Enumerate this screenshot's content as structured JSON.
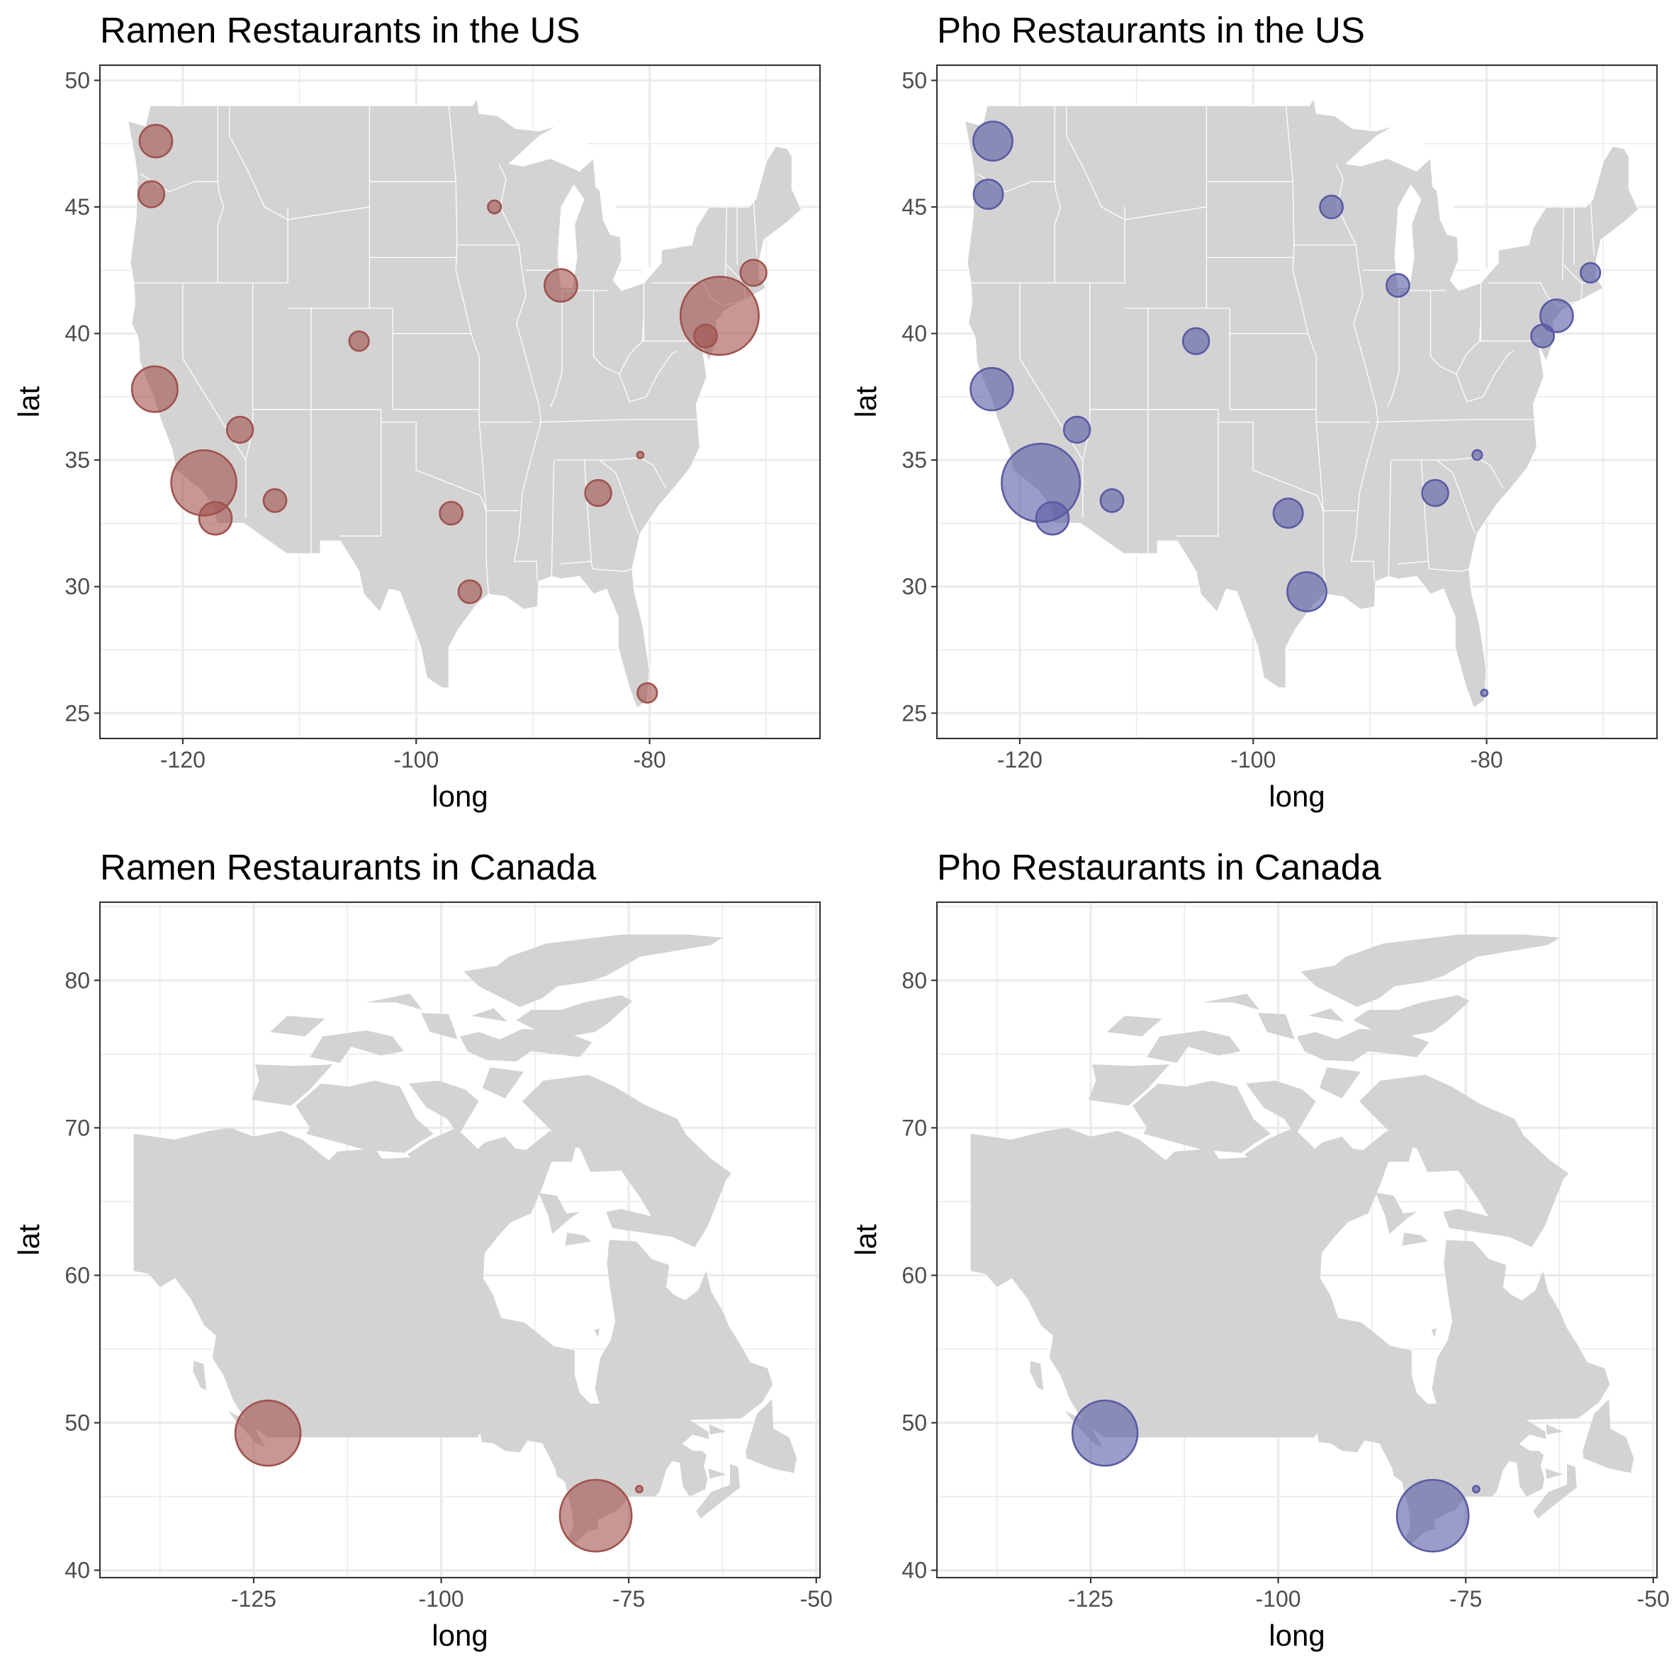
{
  "chart_data": [
    {
      "type": "scatter",
      "panel": "top-left",
      "title": "Ramen Restaurants in the US",
      "xlabel": "long",
      "ylabel": "lat",
      "xlim": [
        -127.1,
        -65.4
      ],
      "ylim": [
        24,
        50.6
      ],
      "x_ticks": [
        -120,
        -100,
        -80
      ],
      "y_ticks": [
        25,
        30,
        35,
        40,
        45,
        50
      ],
      "basemap": "contiguous United States (state outlines)",
      "grid": true,
      "point_color": "#a0524d",
      "points": [
        {
          "long": -122.3,
          "lat": 47.6,
          "size": 5
        },
        {
          "long": -122.7,
          "lat": 45.5,
          "size": 4
        },
        {
          "long": -122.4,
          "lat": 37.8,
          "size": 7
        },
        {
          "long": -118.2,
          "lat": 34.1,
          "size": 10
        },
        {
          "long": -117.2,
          "lat": 32.7,
          "size": 5
        },
        {
          "long": -115.1,
          "lat": 36.2,
          "size": 4
        },
        {
          "long": -112.1,
          "lat": 33.4,
          "size": 3.5
        },
        {
          "long": -104.9,
          "lat": 39.7,
          "size": 3
        },
        {
          "long": -97.0,
          "lat": 32.9,
          "size": 3.5
        },
        {
          "long": -95.4,
          "lat": 29.8,
          "size": 3.5
        },
        {
          "long": -93.3,
          "lat": 45.0,
          "size": 2
        },
        {
          "long": -87.6,
          "lat": 41.9,
          "size": 5
        },
        {
          "long": -84.4,
          "lat": 33.7,
          "size": 4
        },
        {
          "long": -80.8,
          "lat": 35.2,
          "size": 1
        },
        {
          "long": -80.2,
          "lat": 25.8,
          "size": 3
        },
        {
          "long": -75.2,
          "lat": 39.9,
          "size": 3.5
        },
        {
          "long": -74.0,
          "lat": 40.7,
          "size": 12
        },
        {
          "long": -71.1,
          "lat": 42.4,
          "size": 4
        }
      ]
    },
    {
      "type": "scatter",
      "panel": "top-right",
      "title": "Pho Restaurants in the US",
      "xlabel": "long",
      "ylabel": "lat",
      "xlim": [
        -127.1,
        -65.4
      ],
      "ylim": [
        24,
        50.6
      ],
      "x_ticks": [
        -120,
        -100,
        -80
      ],
      "y_ticks": [
        25,
        30,
        35,
        40,
        45,
        50
      ],
      "basemap": "contiguous United States (state outlines)",
      "grid": true,
      "point_color": "#5a5aa5",
      "points": [
        {
          "long": -122.3,
          "lat": 47.6,
          "size": 6
        },
        {
          "long": -122.7,
          "lat": 45.5,
          "size": 4.5
        },
        {
          "long": -122.4,
          "lat": 37.8,
          "size": 6.5
        },
        {
          "long": -118.2,
          "lat": 34.1,
          "size": 12
        },
        {
          "long": -117.2,
          "lat": 32.7,
          "size": 5
        },
        {
          "long": -115.1,
          "lat": 36.2,
          "size": 4
        },
        {
          "long": -112.1,
          "lat": 33.4,
          "size": 3.5
        },
        {
          "long": -104.9,
          "lat": 39.7,
          "size": 4
        },
        {
          "long": -97.0,
          "lat": 32.9,
          "size": 4.5
        },
        {
          "long": -95.4,
          "lat": 29.8,
          "size": 6
        },
        {
          "long": -93.3,
          "lat": 45.0,
          "size": 3.5
        },
        {
          "long": -87.6,
          "lat": 41.9,
          "size": 3.5
        },
        {
          "long": -84.4,
          "lat": 33.7,
          "size": 4
        },
        {
          "long": -80.8,
          "lat": 35.2,
          "size": 1.5
        },
        {
          "long": -80.2,
          "lat": 25.8,
          "size": 1
        },
        {
          "long": -75.2,
          "lat": 39.9,
          "size": 3.5
        },
        {
          "long": -74.0,
          "lat": 40.7,
          "size": 5
        },
        {
          "long": -71.1,
          "lat": 42.4,
          "size": 3
        }
      ]
    },
    {
      "type": "scatter",
      "panel": "bottom-left",
      "title": "Ramen Restaurants in Canada",
      "xlabel": "long",
      "ylabel": "lat",
      "xlim": [
        -145.5,
        -49.5
      ],
      "ylim": [
        39.5,
        85.3
      ],
      "x_ticks": [
        -125,
        -100,
        -75,
        -50
      ],
      "y_ticks": [
        40,
        50,
        60,
        70,
        80
      ],
      "basemap": "Canada",
      "grid": true,
      "point_color": "#a0524d",
      "points": [
        {
          "long": -123.1,
          "lat": 49.3,
          "size": 10
        },
        {
          "long": -79.4,
          "lat": 43.7,
          "size": 11
        },
        {
          "long": -73.6,
          "lat": 45.5,
          "size": 1
        }
      ]
    },
    {
      "type": "scatter",
      "panel": "bottom-right",
      "title": "Pho Restaurants in Canada",
      "xlabel": "long",
      "ylabel": "lat",
      "xlim": [
        -145.5,
        -49.5
      ],
      "ylim": [
        39.5,
        85.3
      ],
      "x_ticks": [
        -125,
        -100,
        -75,
        -50
      ],
      "y_ticks": [
        40,
        50,
        60,
        70,
        80
      ],
      "basemap": "Canada",
      "grid": true,
      "point_color": "#5a5aa5",
      "points": [
        {
          "long": -123.1,
          "lat": 49.3,
          "size": 10
        },
        {
          "long": -79.4,
          "lat": 43.7,
          "size": 11
        },
        {
          "long": -73.6,
          "lat": 45.5,
          "size": 1
        }
      ]
    }
  ]
}
